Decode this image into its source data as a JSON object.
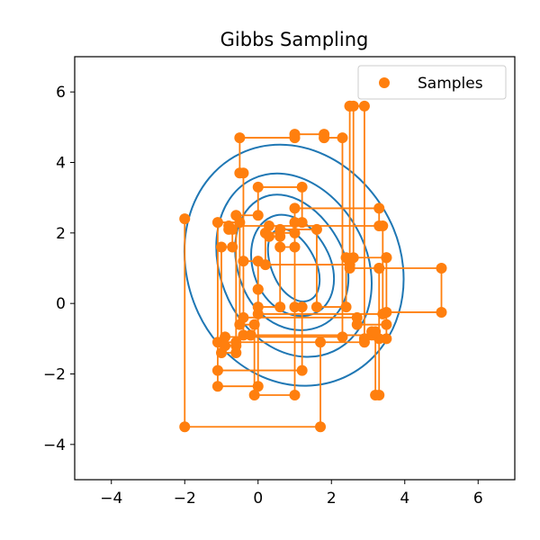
{
  "chart_data": {
    "type": "scatter",
    "title": "Gibbs Sampling",
    "xlabel": "",
    "ylabel": "",
    "xlim": [
      -5,
      7
    ],
    "ylim": [
      -5,
      7
    ],
    "xticks": [
      -4,
      -2,
      0,
      2,
      4,
      6
    ],
    "xtick_labels": [
      "−4",
      "−2",
      "0",
      "2",
      "4",
      "6"
    ],
    "yticks": [
      -4,
      -2,
      0,
      2,
      4,
      6
    ],
    "ytick_labels": [
      "−4",
      "−2",
      "0",
      "2",
      "4",
      "6"
    ],
    "grid": false,
    "legend": {
      "location": "upper right",
      "entries": [
        "Samples"
      ]
    },
    "colors": {
      "samples": "#ff7f0e",
      "contour": "#1f77b4"
    },
    "contours": {
      "center": [
        1.0,
        1.0
      ],
      "levels": [
        {
          "r_left": 0.6,
          "r_right": 0.6,
          "r_up": 1.2,
          "r_down": 1.0
        },
        {
          "r_left": 1.1,
          "r_right": 1.0,
          "r_up": 1.6,
          "r_down": 1.4
        },
        {
          "r_left": 1.5,
          "r_right": 1.4,
          "r_up": 2.2,
          "r_down": 1.8
        },
        {
          "r_left": 2.0,
          "r_right": 2.0,
          "r_up": 2.8,
          "r_down": 2.6
        },
        {
          "r_left": 2.9,
          "r_right": 2.9,
          "r_up": 3.6,
          "r_down": 3.4
        }
      ]
    },
    "series": [
      {
        "name": "Samples",
        "points": [
          [
            -2.0,
            2.4
          ],
          [
            -2.0,
            -3.5
          ],
          [
            1.7,
            -3.5
          ],
          [
            1.7,
            -1.1
          ],
          [
            -1.1,
            -1.1
          ],
          [
            -1.1,
            -2.35
          ],
          [
            0.0,
            -2.35
          ],
          [
            0.0,
            -0.1
          ],
          [
            0.6,
            -0.1
          ],
          [
            0.6,
            1.6
          ],
          [
            1.0,
            1.6
          ],
          [
            1.0,
            2.0
          ],
          [
            0.2,
            2.0
          ],
          [
            0.2,
            1.1
          ],
          [
            2.5,
            1.1
          ],
          [
            2.5,
            5.6
          ],
          [
            2.9,
            5.6
          ],
          [
            2.9,
            -1.0
          ],
          [
            3.3,
            -1.0
          ],
          [
            3.3,
            1.0
          ],
          [
            5.0,
            1.0
          ],
          [
            5.0,
            -0.25
          ],
          [
            3.5,
            -0.25
          ],
          [
            3.5,
            -0.6
          ],
          [
            2.7,
            -0.6
          ],
          [
            2.7,
            -0.4
          ],
          [
            -0.4,
            -0.4
          ],
          [
            -0.4,
            3.7
          ],
          [
            -0.5,
            3.7
          ],
          [
            -0.5,
            4.7
          ],
          [
            1.0,
            4.7
          ],
          [
            1.0,
            4.8
          ],
          [
            1.8,
            4.8
          ],
          [
            1.8,
            4.7
          ],
          [
            2.3,
            4.7
          ],
          [
            2.3,
            -0.95
          ],
          [
            -0.9,
            -0.95
          ],
          [
            -0.9,
            -1.2
          ],
          [
            -0.6,
            -1.2
          ],
          [
            -0.6,
            2.5
          ],
          [
            0.0,
            2.5
          ],
          [
            0.0,
            3.3
          ],
          [
            1.2,
            3.3
          ],
          [
            1.2,
            2.3
          ],
          [
            1.0,
            2.3
          ],
          [
            1.0,
            -0.1
          ],
          [
            1.2,
            -0.1
          ],
          [
            1.2,
            -1.9
          ],
          [
            -1.1,
            -1.9
          ],
          [
            -1.1,
            2.3
          ],
          [
            -0.5,
            2.3
          ],
          [
            -0.5,
            -0.6
          ],
          [
            -0.1,
            -0.6
          ],
          [
            -0.1,
            -2.6
          ],
          [
            1.0,
            -2.6
          ],
          [
            1.0,
            2.7
          ],
          [
            3.3,
            2.7
          ],
          [
            3.3,
            2.2
          ],
          [
            0.3,
            2.2
          ],
          [
            0.3,
            1.9
          ],
          [
            0.6,
            1.9
          ],
          [
            0.6,
            2.1
          ],
          [
            1.6,
            2.1
          ],
          [
            1.6,
            -0.1
          ],
          [
            2.4,
            -0.1
          ],
          [
            2.4,
            1.3
          ],
          [
            3.5,
            1.3
          ],
          [
            3.5,
            -1.0
          ],
          [
            2.9,
            -1.0
          ],
          [
            2.9,
            -1.1
          ],
          [
            -0.6,
            -1.1
          ],
          [
            -0.6,
            -1.4
          ],
          [
            -1.0,
            -1.4
          ],
          [
            -1.0,
            1.6
          ],
          [
            -0.7,
            1.6
          ],
          [
            -0.7,
            2.1
          ],
          [
            -0.8,
            2.1
          ],
          [
            -0.8,
            2.2
          ],
          [
            3.4,
            2.2
          ],
          [
            3.4,
            -0.3
          ],
          [
            0.0,
            -0.3
          ],
          [
            0.0,
            0.4
          ],
          [
            0.0,
            0.4
          ],
          [
            0.0,
            1.2
          ],
          [
            -0.4,
            1.2
          ],
          [
            -0.4,
            -0.9
          ],
          [
            -0.2,
            -0.9
          ],
          [
            -0.2,
            -0.9
          ],
          [
            3.1,
            -0.9
          ],
          [
            3.1,
            -0.8
          ],
          [
            3.2,
            -0.8
          ],
          [
            3.2,
            -2.6
          ],
          [
            3.3,
            -2.6
          ],
          [
            3.3,
            1.0
          ],
          [
            2.5,
            1.0
          ],
          [
            2.5,
            5.6
          ],
          [
            2.6,
            5.6
          ],
          [
            2.6,
            1.3
          ],
          [
            3.5,
            1.3
          ]
        ]
      }
    ]
  }
}
